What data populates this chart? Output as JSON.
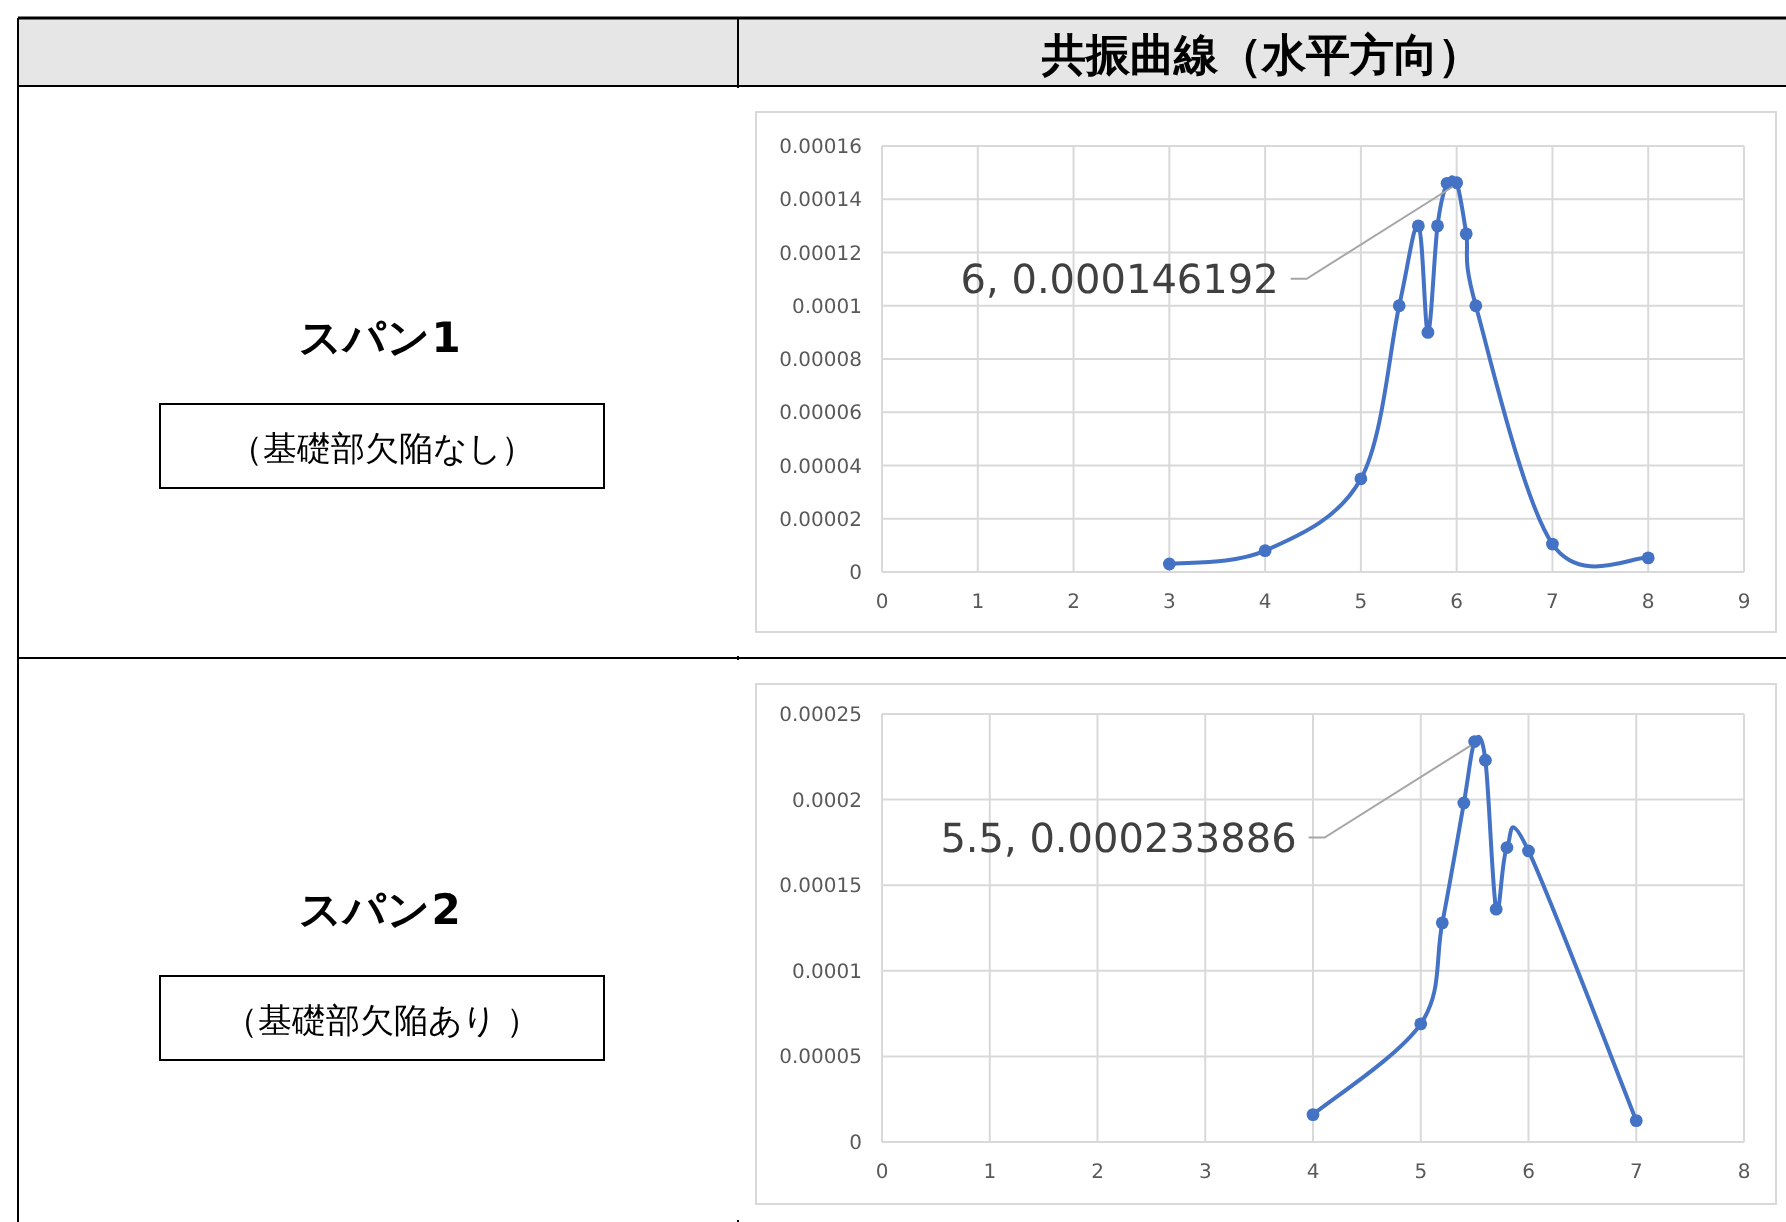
{
  "chart_data": [
    {
      "type": "line",
      "title": "共振曲線（水平方向）",
      "annotations": [
        "スパン1",
        "（基礎部欠陥なし）",
        {
          "text": "6, 0.000146192",
          "x": 6,
          "y": 0.000146192
        }
      ],
      "x": [
        3,
        4,
        5,
        5.4,
        5.6,
        5.7,
        5.8,
        5.9,
        6,
        6.1,
        6.2,
        7,
        8
      ],
      "series": [
        {
          "color": "#4472c4",
          "values": [
            3e-06,
            8e-06,
            3.5e-05,
            0.0001,
            0.00013,
            9e-05,
            0.00013,
            0.000146,
            0.000146192,
            0.000127,
            0.0001,
            1.05e-05,
            5.3e-06
          ]
        }
      ],
      "xlim": [
        0,
        9
      ],
      "xticks": [
        0,
        1,
        2,
        3,
        4,
        5,
        6,
        7,
        8,
        9
      ],
      "ylim": [
        0,
        0.00016
      ],
      "yticks": [
        0,
        {
          "value": 2e-05,
          "label": "0.00002"
        },
        {
          "value": 4e-05,
          "label": "0.00004"
        },
        {
          "value": 6e-05,
          "label": "0.00006"
        },
        {
          "value": 8e-05,
          "label": "0.00008"
        },
        0.0001,
        0.00012,
        0.00014,
        0.00016
      ],
      "grid": true,
      "marker": "circle",
      "line_style": "solid"
    },
    {
      "type": "line",
      "annotations": [
        "スパン2",
        "（基礎部欠陥あり ）",
        {
          "text": "5.5, 0.000233886",
          "x": 5.5,
          "y": 0.000233886
        }
      ],
      "x": [
        4,
        5,
        5.2,
        5.4,
        5.5,
        5.6,
        5.7,
        5.8,
        6,
        7
      ],
      "series": [
        {
          "color": "#4472c4",
          "values": [
            1.6e-05,
            6.9e-05,
            0.000128,
            0.000198,
            0.000233886,
            0.000223,
            0.000136,
            0.000172,
            0.00017,
            1.25e-05
          ]
        }
      ],
      "xlim": [
        0,
        8
      ],
      "xticks": [
        0,
        1,
        2,
        3,
        4,
        5,
        6,
        7,
        8
      ],
      "ylim": [
        0,
        0.00025
      ],
      "yticks": [
        0,
        {
          "value": 5e-05,
          "label": "0.00005"
        },
        0.0001,
        0.00015,
        0.0002,
        0.00025
      ],
      "grid": true,
      "marker": "circle",
      "line_style": "solid"
    }
  ]
}
